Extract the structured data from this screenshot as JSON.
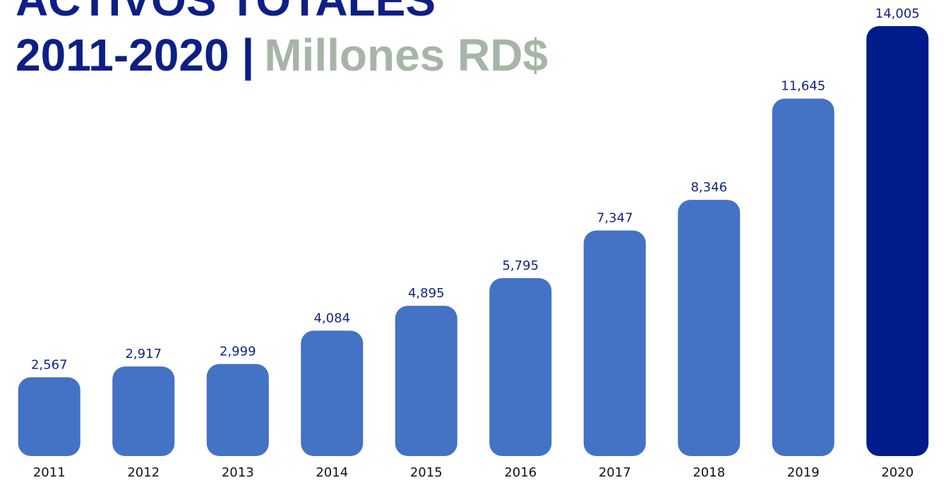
{
  "chart_data": {
    "type": "bar",
    "title": [
      "ACTIVOS TOTALES",
      "2011-2020 |"
    ],
    "subtitle": "Millones RD$",
    "categories": [
      "2011",
      "2012",
      "2013",
      "2014",
      "2015",
      "2016",
      "2017",
      "2018",
      "2019",
      "2020"
    ],
    "values": [
      2567,
      2917,
      2999,
      4084,
      4895,
      5795,
      7347,
      8346,
      11645,
      14005
    ],
    "value_labels": [
      "2,567",
      "2,917",
      "2,999",
      "4,084",
      "4,895",
      "5,795",
      "7,347",
      "8,346",
      "11,645",
      "14,005"
    ],
    "colors": [
      "#4472c4",
      "#4472c4",
      "#4472c4",
      "#4472c4",
      "#4472c4",
      "#4472c4",
      "#4472c4",
      "#4472c4",
      "#4472c4",
      "#001c8a"
    ]
  }
}
